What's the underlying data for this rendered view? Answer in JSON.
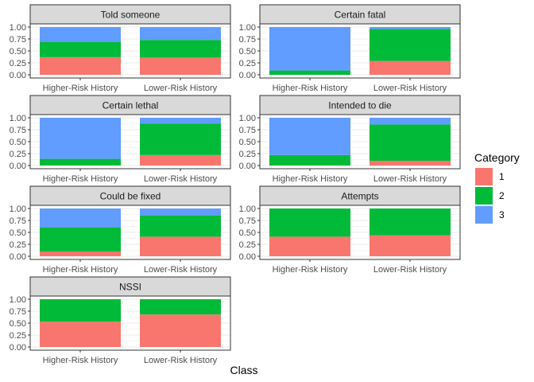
{
  "chart_data": {
    "type": "bar",
    "stacked": true,
    "xlabel": "Class",
    "categories": [
      "Higher-Risk History",
      "Lower-Risk History"
    ],
    "y_ticks": [
      "0.00",
      "0.25",
      "0.50",
      "0.75",
      "1.00"
    ],
    "ylim": [
      0,
      1
    ],
    "grid": true,
    "legend": {
      "title": "Category",
      "position": "right",
      "entries": [
        {
          "label": "1",
          "color": "#F8766D"
        },
        {
          "label": "2",
          "color": "#00BA38"
        },
        {
          "label": "3",
          "color": "#619CFF"
        }
      ]
    },
    "panels": [
      {
        "title": "Told someone",
        "values": {
          "1": [
            0.37,
            0.36
          ],
          "2": [
            0.32,
            0.37
          ],
          "3": [
            0.31,
            0.27
          ]
        }
      },
      {
        "title": "Certain fatal",
        "values": {
          "1": [
            0.0,
            0.29
          ],
          "2": [
            0.09,
            0.67
          ],
          "3": [
            0.91,
            0.04
          ]
        }
      },
      {
        "title": "Certain lethal",
        "values": {
          "1": [
            0.0,
            0.22
          ],
          "2": [
            0.14,
            0.66
          ],
          "3": [
            0.86,
            0.12
          ]
        }
      },
      {
        "title": "Intended to die",
        "values": {
          "1": [
            0.0,
            0.1
          ],
          "2": [
            0.22,
            0.76
          ],
          "3": [
            0.78,
            0.14
          ]
        }
      },
      {
        "title": "Could be fixed",
        "values": {
          "1": [
            0.1,
            0.41
          ],
          "2": [
            0.5,
            0.44
          ],
          "3": [
            0.4,
            0.15
          ]
        }
      },
      {
        "title": "Attempts",
        "values": {
          "1": [
            0.41,
            0.44
          ],
          "2": [
            0.59,
            0.56
          ]
        }
      },
      {
        "title": "NSSI",
        "values": {
          "1": [
            0.53,
            0.68
          ],
          "2": [
            0.47,
            0.32
          ]
        }
      }
    ]
  }
}
